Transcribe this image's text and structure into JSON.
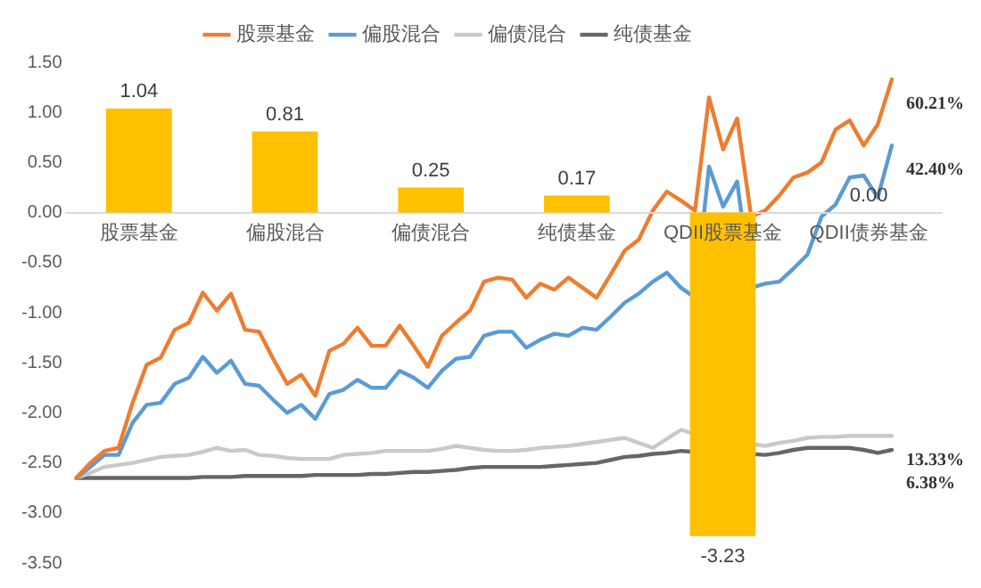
{
  "chart_data": [
    {
      "type": "bar",
      "categories": [
        "股票基金",
        "偏股混合",
        "偏债混合",
        "纯债基金",
        "QDII股票基金",
        "QDII债券基金"
      ],
      "series": [
        {
          "color": "#ffc000",
          "values": [
            1.04,
            0.81,
            0.25,
            0.17,
            -3.23,
            0.0
          ],
          "value_labels": [
            "1.04",
            "0.81",
            "0.25",
            "0.17",
            "-3.23",
            "0.00"
          ]
        }
      ],
      "ylim": [
        -3.5,
        1.5
      ],
      "tick_labels": "x",
      "grid": false
    },
    {
      "type": "line",
      "categories": [
        null,
        null,
        null,
        null,
        null,
        null,
        null,
        null,
        null,
        null,
        null,
        null,
        null,
        null,
        null,
        null,
        null,
        null,
        null,
        null,
        null,
        null,
        null,
        null,
        null,
        null,
        null,
        null,
        null,
        null,
        null,
        null,
        null,
        null,
        null,
        null,
        null,
        null,
        null,
        null,
        null,
        null,
        null,
        null,
        null,
        null,
        null,
        null,
        null,
        null,
        null,
        null,
        null,
        null,
        null,
        null,
        null,
        null,
        null
      ],
      "series": [
        {
          "name": "股票基金",
          "color": "#ed7d31",
          "values": [
            -2.65,
            -2.5,
            -2.38,
            -2.35,
            -1.9,
            -1.52,
            -1.45,
            -1.17,
            -1.1,
            -0.8,
            -0.98,
            -0.81,
            -1.17,
            -1.19,
            -1.46,
            -1.71,
            -1.62,
            -1.83,
            -1.38,
            -1.31,
            -1.15,
            -1.33,
            -1.33,
            -1.13,
            -1.33,
            -1.54,
            -1.23,
            -1.1,
            -0.98,
            -0.69,
            -0.65,
            -0.67,
            -0.85,
            -0.71,
            -0.77,
            -0.65,
            -0.75,
            -0.85,
            -0.62,
            -0.38,
            -0.27,
            0.02,
            0.21,
            0.12,
            0.02,
            1.15,
            0.63,
            0.94,
            -0.04,
            0.02,
            0.17,
            0.35,
            0.4,
            0.5,
            0.83,
            0.92,
            0.67,
            0.88,
            1.33
          ]
        },
        {
          "name": "偏股混合",
          "color": "#5b9bd5",
          "values": [
            -2.65,
            -2.54,
            -2.42,
            -2.42,
            -2.1,
            -1.92,
            -1.9,
            -1.71,
            -1.65,
            -1.44,
            -1.6,
            -1.48,
            -1.71,
            -1.73,
            -1.87,
            -2.0,
            -1.92,
            -2.06,
            -1.81,
            -1.77,
            -1.67,
            -1.75,
            -1.75,
            -1.58,
            -1.65,
            -1.75,
            -1.58,
            -1.46,
            -1.44,
            -1.23,
            -1.19,
            -1.19,
            -1.35,
            -1.27,
            -1.21,
            -1.23,
            -1.15,
            -1.17,
            -1.04,
            -0.9,
            -0.81,
            -0.69,
            -0.6,
            -0.75,
            -0.85,
            0.46,
            0.06,
            0.31,
            -0.75,
            -0.71,
            -0.69,
            -0.56,
            -0.42,
            -0.04,
            0.08,
            0.35,
            0.37,
            0.15,
            0.67
          ]
        },
        {
          "name": "偏债混合",
          "color": "#c9c9c9",
          "values": [
            -2.65,
            -2.6,
            -2.54,
            -2.52,
            -2.5,
            -2.47,
            -2.44,
            -2.43,
            -2.42,
            -2.39,
            -2.35,
            -2.38,
            -2.37,
            -2.42,
            -2.43,
            -2.45,
            -2.46,
            -2.46,
            -2.46,
            -2.42,
            -2.41,
            -2.4,
            -2.38,
            -2.38,
            -2.38,
            -2.38,
            -2.36,
            -2.33,
            -2.35,
            -2.37,
            -2.38,
            -2.38,
            -2.37,
            -2.35,
            -2.34,
            -2.33,
            -2.31,
            -2.29,
            -2.27,
            -2.25,
            -2.3,
            -2.35,
            -2.26,
            -2.17,
            -2.21,
            null,
            null,
            null,
            -2.31,
            -2.33,
            -2.3,
            -2.28,
            -2.25,
            -2.24,
            -2.24,
            -2.23,
            -2.23,
            -2.23,
            -2.23
          ]
        },
        {
          "name": "纯债基金",
          "color": "#666666",
          "values": [
            -2.65,
            -2.65,
            -2.65,
            -2.65,
            -2.65,
            -2.65,
            -2.65,
            -2.65,
            -2.65,
            -2.64,
            -2.64,
            -2.64,
            -2.63,
            -2.63,
            -2.63,
            -2.63,
            -2.63,
            -2.62,
            -2.62,
            -2.62,
            -2.62,
            -2.61,
            -2.61,
            -2.6,
            -2.59,
            -2.59,
            -2.58,
            -2.57,
            -2.55,
            -2.54,
            -2.54,
            -2.54,
            -2.54,
            -2.54,
            -2.53,
            -2.52,
            -2.51,
            -2.5,
            -2.47,
            -2.44,
            -2.43,
            -2.41,
            -2.4,
            -2.38,
            -2.39,
            null,
            null,
            null,
            -2.41,
            -2.42,
            -2.4,
            -2.37,
            -2.35,
            -2.35,
            -2.35,
            -2.35,
            -2.37,
            -2.4,
            -2.37
          ]
        }
      ],
      "annotations": [
        "60.21%",
        "42.40%",
        "13.33%",
        "6.38%"
      ],
      "ylim": [
        -3.5,
        1.5
      ],
      "yticks": [
        {
          "value": -3.5,
          "label": "-3.50"
        },
        {
          "value": -3,
          "label": "-3.00"
        },
        {
          "value": -2.5,
          "label": "-2.50"
        },
        {
          "value": -2,
          "label": "-2.00"
        },
        {
          "value": -1.5,
          "label": "-1.50"
        },
        {
          "value": -1,
          "label": "-1.00"
        },
        {
          "value": -0.5,
          "label": "-0.50"
        },
        {
          "value": 0,
          "label": "0.00"
        },
        {
          "value": 0.5,
          "label": "0.50"
        },
        {
          "value": 1,
          "label": "1.00"
        },
        {
          "value": 1.5,
          "label": "1.50"
        }
      ],
      "tick_labels": "y",
      "grid": false,
      "legend": "top",
      "marker": "none",
      "line_style": "solid"
    }
  ]
}
